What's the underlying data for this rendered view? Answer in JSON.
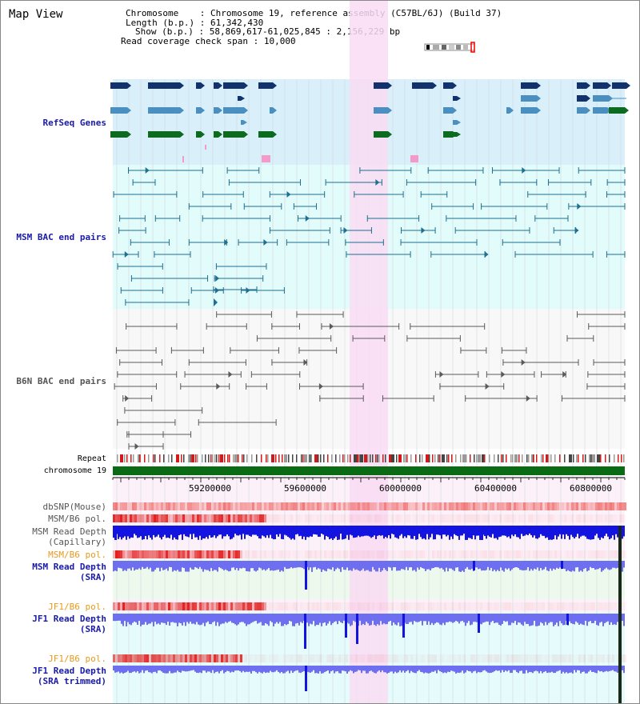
{
  "title": "Map View",
  "header": {
    "chromosome_key": "Chromosome",
    "chromosome_val": "Chromosome 19, reference assembly (C57BL/6J) (Build 37)",
    "length_key": "Length (b.p.)",
    "length_val": "61,342,430",
    "show_key": "Show (b.p.)",
    "show_val": "58,869,617-61,025,845 : 2,156,229 bp",
    "span_key": "Read coverage check span",
    "span_val": "10,000"
  },
  "tracks": {
    "refseq": "RefSeq Genes",
    "msm_bac": "MSM BAC end pairs",
    "b6n_bac": "B6N BAC end pairs",
    "repeat": "Repeat",
    "chrom": "chromosome 19",
    "dbsnp": "dbSNP(Mouse)",
    "msm_b6_pol_1": "MSM/B6 pol.",
    "msm_depth_cap_1": "MSM Read Depth",
    "msm_depth_cap_2": "(Capillary)",
    "msm_b6_pol_2": "MSM/B6 pol.",
    "msm_depth_sra_1": "MSM Read Depth",
    "msm_depth_sra_2": "(SRA)",
    "jf1_b6_pol_1": "JF1/B6 pol.",
    "jf1_depth_1": "JF1 Read Depth",
    "jf1_depth_2": "(SRA)",
    "jf1_b6_pol_2": "JF1/B6 pol.",
    "jf1_trim_1": "JF1 Read Depth",
    "jf1_trim_2": "(SRA trimmed)"
  },
  "axis_ticks": [
    "59200000",
    "59600000",
    "60000000",
    "60400000",
    "60800000"
  ],
  "colors": {
    "refseq_dark": "#12326e",
    "refseq_mid": "#4a8fbf",
    "refseq_green": "#0c6b1e",
    "highlight": "#f9dcf3",
    "msm_bac": "#1f6f90",
    "b6n_bac": "#5a5a5a",
    "chrom_bar": "#0a6b14",
    "depth_blue": "#1414e0",
    "depth_lavender": "#6e6ef0",
    "pol_red": "#e21e1e"
  }
}
